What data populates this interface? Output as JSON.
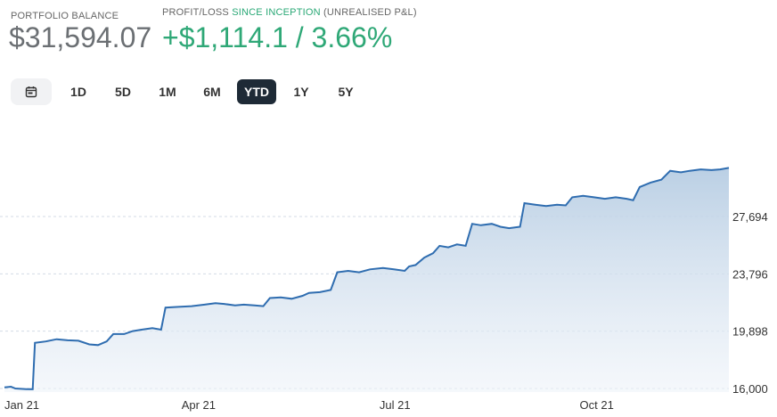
{
  "header": {
    "balance_label": "PORTFOLIO BALANCE",
    "balance_value": "$31,594.07",
    "pl_label_prefix": "PROFIT/LOSS",
    "pl_label_accent": "SINCE INCEPTION",
    "pl_label_suffix": "(UNREALISED P&L)",
    "pl_value": "+$1,114.1 / 3.66%"
  },
  "colors": {
    "accent": "#2fa877",
    "line": "#2f6db0",
    "active_tab": "#1e2a36"
  },
  "tabs": [
    {
      "label": "1D",
      "active": false
    },
    {
      "label": "5D",
      "active": false
    },
    {
      "label": "1M",
      "active": false
    },
    {
      "label": "6M",
      "active": false
    },
    {
      "label": "YTD",
      "active": true
    },
    {
      "label": "1Y",
      "active": false
    },
    {
      "label": "5Y",
      "active": false
    }
  ],
  "calendar_icon": "calendar-icon",
  "chart_data": {
    "type": "area",
    "title": "",
    "xlabel": "",
    "ylabel": "",
    "x_ticks": [
      "Jan 21",
      "Apr 21",
      "Jul 21",
      "Oct 21"
    ],
    "y_ticks": [
      "16,000",
      "19,898",
      "23,796",
      "27,694"
    ],
    "ylim": [
      16000,
      31800
    ],
    "grid": "horizontal-dashed",
    "series": [
      {
        "name": "",
        "points": [
          [
            "2021-01-01",
            16080
          ],
          [
            "2021-01-04",
            16120
          ],
          [
            "2021-01-06",
            16000
          ],
          [
            "2021-01-11",
            15960
          ],
          [
            "2021-01-14",
            15950
          ],
          [
            "2021-01-15",
            19100
          ],
          [
            "2021-01-20",
            19200
          ],
          [
            "2021-01-25",
            19350
          ],
          [
            "2021-01-30",
            19280
          ],
          [
            "2021-02-04",
            19250
          ],
          [
            "2021-02-09",
            19000
          ],
          [
            "2021-02-13",
            18950
          ],
          [
            "2021-02-17",
            19200
          ],
          [
            "2021-02-20",
            19700
          ],
          [
            "2021-02-25",
            19700
          ],
          [
            "2021-03-01",
            19900
          ],
          [
            "2021-03-05",
            20000
          ],
          [
            "2021-03-10",
            20100
          ],
          [
            "2021-03-14",
            20000
          ],
          [
            "2021-03-16",
            21500
          ],
          [
            "2021-03-22",
            21550
          ],
          [
            "2021-03-28",
            21600
          ],
          [
            "2021-04-03",
            21700
          ],
          [
            "2021-04-08",
            21800
          ],
          [
            "2021-04-12",
            21750
          ],
          [
            "2021-04-17",
            21650
          ],
          [
            "2021-04-21",
            21700
          ],
          [
            "2021-04-26",
            21650
          ],
          [
            "2021-04-30",
            21600
          ],
          [
            "2021-05-03",
            22150
          ],
          [
            "2021-05-08",
            22200
          ],
          [
            "2021-05-13",
            22100
          ],
          [
            "2021-05-18",
            22300
          ],
          [
            "2021-05-21",
            22500
          ],
          [
            "2021-05-26",
            22550
          ],
          [
            "2021-05-31",
            22700
          ],
          [
            "2021-06-03",
            23900
          ],
          [
            "2021-06-08",
            24000
          ],
          [
            "2021-06-13",
            23900
          ],
          [
            "2021-06-18",
            24100
          ],
          [
            "2021-06-24",
            24200
          ],
          [
            "2021-06-29",
            24100
          ],
          [
            "2021-07-04",
            24000
          ],
          [
            "2021-07-06",
            24300
          ],
          [
            "2021-07-09",
            24400
          ],
          [
            "2021-07-13",
            24900
          ],
          [
            "2021-07-17",
            25200
          ],
          [
            "2021-07-20",
            25700
          ],
          [
            "2021-07-24",
            25600
          ],
          [
            "2021-07-28",
            25800
          ],
          [
            "2021-08-01",
            25700
          ],
          [
            "2021-08-04",
            27200
          ],
          [
            "2021-08-08",
            27100
          ],
          [
            "2021-08-13",
            27200
          ],
          [
            "2021-08-17",
            27000
          ],
          [
            "2021-08-21",
            26900
          ],
          [
            "2021-08-26",
            27000
          ],
          [
            "2021-08-28",
            28600
          ],
          [
            "2021-09-02",
            28500
          ],
          [
            "2021-09-07",
            28400
          ],
          [
            "2021-09-12",
            28500
          ],
          [
            "2021-09-16",
            28450
          ],
          [
            "2021-09-19",
            29000
          ],
          [
            "2021-09-24",
            29100
          ],
          [
            "2021-09-29",
            29000
          ],
          [
            "2021-10-04",
            28900
          ],
          [
            "2021-10-09",
            29000
          ],
          [
            "2021-10-14",
            28900
          ],
          [
            "2021-10-17",
            28800
          ],
          [
            "2021-10-20",
            29700
          ],
          [
            "2021-10-25",
            30000
          ],
          [
            "2021-10-30",
            30200
          ],
          [
            "2021-11-03",
            30800
          ],
          [
            "2021-11-08",
            30700
          ],
          [
            "2021-11-12",
            30800
          ],
          [
            "2021-11-17",
            30900
          ],
          [
            "2021-11-22",
            30850
          ],
          [
            "2021-11-26",
            30900
          ],
          [
            "2021-11-30",
            31000
          ]
        ]
      }
    ]
  }
}
